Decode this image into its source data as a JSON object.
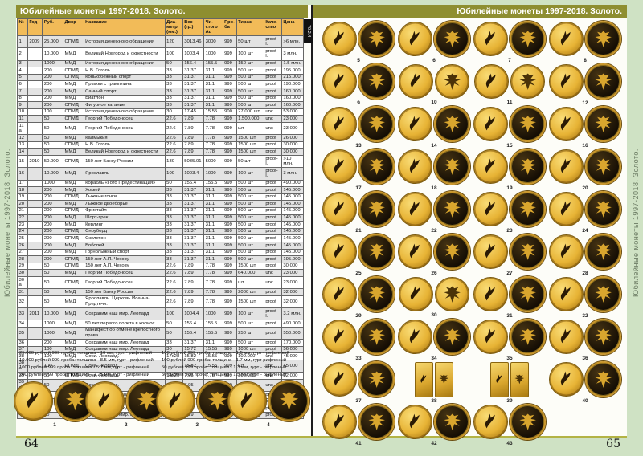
{
  "spread": {
    "side_title": "Юбилейные монеты 1997-2018. Золото.",
    "colors": {
      "title_bar": "#8e8e30",
      "table_header": "#f2bb58",
      "margin_green": "#cfe2c4",
      "coin_gold": "#d9a62e",
      "coin_dark": "#140d04"
    }
  },
  "left_page": {
    "title": "Юбилейные монеты 1997-2018. Золото.",
    "tab_label": "70.2.4",
    "page_number": "64",
    "table": {
      "headers": [
        "№",
        "Год",
        "Руб.",
        "Двор",
        "Название",
        "Диа-метр (мм.)",
        "Вес (гр.)",
        "Чи-стого Au",
        "Про-ба",
        "Тираж",
        "Каче-ство",
        "Цена"
      ],
      "rows": [
        [
          "1",
          "2009",
          "25.000",
          "СПМД",
          "История денежного обращения",
          "120",
          "3013.46",
          "3000",
          "999",
          "50 шт",
          "proof-l.",
          ">6 млн."
        ],
        [
          "2",
          "",
          "10.000",
          "ММД",
          "Великий Новгород и окрестности",
          "100",
          "1003.4",
          "1000",
          "999",
          "100 шт",
          "proof-l.",
          "3 млн."
        ],
        [
          "3",
          "",
          "1000",
          "ММД",
          "История денежного обращения",
          "50",
          "156.4",
          "155.5",
          "999",
          "150 шт",
          "proof",
          "1.5 млн."
        ],
        [
          "4",
          "",
          "200",
          "СПМД",
          "Н.В. Гоголь",
          "33",
          "31.37",
          "31.1",
          "999",
          "500 шт",
          "proof",
          "195.000"
        ],
        [
          "5",
          "",
          "200",
          "СПМД",
          "Конькобежный спорт",
          "33",
          "31.37",
          "31.1",
          "999",
          "500 шт",
          "proof",
          "215.000"
        ],
        [
          "6",
          "",
          "200",
          "ММД",
          "Прыжки с трамплина",
          "33",
          "31.37",
          "31.1",
          "999",
          "500 шт",
          "proof",
          "190.000"
        ],
        [
          "7",
          "",
          "200",
          "ММД",
          "Санный спорт",
          "33",
          "31.37",
          "31.1",
          "999",
          "500 шт",
          "proof",
          "160.000"
        ],
        [
          "8",
          "",
          "200",
          "ММД",
          "Биатлон",
          "33",
          "31.37",
          "31.1",
          "999",
          "500 шт",
          "proof",
          "160.000"
        ],
        [
          "9",
          "",
          "200",
          "СПМД",
          "Фигурное катание",
          "33",
          "31.37",
          "31.1",
          "999",
          "500 шт",
          "proof",
          "160.000"
        ],
        [
          "10",
          "",
          "100",
          "СПМД",
          "История денежного обращения",
          "30",
          "17.45",
          "15.55",
          "900",
          "27.000 шт",
          "unc",
          "53.000"
        ],
        [
          "11",
          "",
          "50",
          "СПМД",
          "Георгий Победоносец",
          "22.6",
          "7.89",
          "7.78",
          "999",
          "1.500.000",
          "unc",
          "23.000"
        ],
        [
          "11а",
          "",
          "50",
          "ММД",
          "Георгий Победоносец",
          "22.6",
          "7.89",
          "7.78",
          "999",
          "шт",
          "unc",
          "23.000"
        ],
        [
          "12",
          "",
          "50",
          "ММД",
          "Калмыкия",
          "22.6",
          "7.89",
          "7.78",
          "999",
          "1500 шт",
          "proof",
          "26.000"
        ],
        [
          "13",
          "",
          "50",
          "СПМД",
          "Н.В. Гоголь",
          "22.6",
          "7.89",
          "7.78",
          "999",
          "1500 шт",
          "proof",
          "30.000"
        ],
        [
          "14",
          "",
          "50",
          "ММД",
          "Великий Новгород и окрестности",
          "22.6",
          "7.89",
          "7.78",
          "999",
          "1500 шт",
          "proof",
          "30.000"
        ],
        [
          "15",
          "2010",
          "50.000",
          "СПМД",
          "150 лет Банку России",
          "130",
          "5035.01",
          "5000",
          "999",
          "50 шт",
          "proof-l.",
          ">10 млн."
        ],
        [
          "16",
          "",
          "10.000",
          "ММД",
          "Ярославль",
          "100",
          "1003.4",
          "1000",
          "999",
          "100 шт",
          "proof-l.",
          "3 млн."
        ],
        [
          "17",
          "",
          "1000",
          "ММД",
          "Корабль «Гото Предестинация»",
          "50",
          "156.4",
          "155.5",
          "999",
          "500 шт",
          "proof",
          "490.000"
        ],
        [
          "18",
          "",
          "200",
          "ММД",
          "Хоккей",
          "33",
          "31.37",
          "31.1",
          "999",
          "500 шт",
          "proof",
          "145.000"
        ],
        [
          "19",
          "",
          "200",
          "СПМД",
          "Лыжные гонки",
          "33",
          "31.37",
          "31.1",
          "999",
          "500 шт",
          "proof",
          "145.000"
        ],
        [
          "20",
          "",
          "200",
          "ММД",
          "Лыжное двоеборье",
          "33",
          "31.37",
          "31.1",
          "999",
          "500 шт",
          "proof",
          "145.000"
        ],
        [
          "21",
          "",
          "200",
          "СПМД",
          "Фристайл",
          "33",
          "31.37",
          "31.1",
          "999",
          "500 шт",
          "proof",
          "145.000"
        ],
        [
          "22",
          "",
          "200",
          "ММД",
          "Шорт-трек",
          "33",
          "31.37",
          "31.1",
          "999",
          "500 шт",
          "proof",
          "145.000"
        ],
        [
          "23",
          "",
          "200",
          "ММД",
          "Керлинг",
          "33",
          "31.37",
          "31.1",
          "999",
          "500 шт",
          "proof",
          "145.000"
        ],
        [
          "24",
          "",
          "200",
          "СПМД",
          "Сноуборд",
          "33",
          "31.37",
          "31.1",
          "999",
          "500 шт",
          "proof",
          "145.000"
        ],
        [
          "25",
          "",
          "200",
          "СПМД",
          "Скелетон",
          "33",
          "31.37",
          "31.1",
          "999",
          "500 шт",
          "proof",
          "145.000"
        ],
        [
          "26",
          "",
          "200",
          "ММД",
          "Бобслей",
          "33",
          "31.37",
          "31.1",
          "999",
          "500 шт",
          "proof",
          "145.000"
        ],
        [
          "27",
          "",
          "200",
          "ММД",
          "Горнолыжный спорт",
          "33",
          "31.37",
          "31.1",
          "999",
          "500 шт",
          "proof",
          "145.000"
        ],
        [
          "28",
          "",
          "200",
          "СПМД",
          "150 лет А.П. Чехову",
          "33",
          "31.37",
          "31.1",
          "999",
          "500 шт",
          "proof",
          "195.000"
        ],
        [
          "29",
          "",
          "50",
          "СПМД",
          "150 лет А.П. Чехову",
          "22.6",
          "7.89",
          "7.78",
          "999",
          "1500 шт",
          "proof",
          "30.000"
        ],
        [
          "30",
          "",
          "50",
          "ММД",
          "Георгий Победоносец",
          "22.6",
          "7.89",
          "7.78",
          "999",
          "640.000",
          "unc",
          "23.000"
        ],
        [
          "30а",
          "",
          "50",
          "СПМД",
          "Георгий Победоносец",
          "22.6",
          "7.89",
          "7.78",
          "999",
          "шт",
          "unc",
          "23.000"
        ],
        [
          "31",
          "",
          "50",
          "ММД",
          "150 лет Банку России",
          "22.6",
          "7.89",
          "7.78",
          "999",
          "2000 шт",
          "proof",
          "32.000"
        ],
        [
          "32",
          "",
          "50",
          "ММД",
          "Ярославль. Церковь Иоанна-Предтечи.",
          "22.6",
          "7.89",
          "7.78",
          "999",
          "1500 шт",
          "proof",
          "32.000"
        ],
        [
          "33",
          "2011",
          "10.000",
          "ММД",
          "Сохраним наш мир. Леопард",
          "100",
          "1004.4",
          "1000",
          "999",
          "100 шт",
          "proof-l.",
          "3.2 млн."
        ],
        [
          "34",
          "",
          "1000",
          "ММД",
          "50 лет первого полета в космос",
          "50",
          "156.4",
          "155.5",
          "999",
          "500 шт",
          "proof",
          "490.000"
        ],
        [
          "35",
          "",
          "1000",
          "ММД",
          "Манифест об отмене крепостного права",
          "50",
          "156.4",
          "155.5",
          "999",
          "250 шт",
          "proof",
          "550.000"
        ],
        [
          "36",
          "",
          "200",
          "ММД",
          "Сохраним наш мир. Леопард",
          "33",
          "31.37",
          "31.1",
          "999",
          "500 шт",
          "proof",
          "170.000"
        ],
        [
          "37",
          "",
          "100",
          "ММД",
          "Сохраним наш мир. Леопард",
          "30",
          "15.72",
          "15.55",
          "999",
          "1000 шт",
          "proof",
          "56.000"
        ],
        [
          "38",
          "",
          "100",
          "ММД",
          "Сочи. Леопард.",
          "17х28",
          "15.82",
          "15.55",
          "999",
          "100.000",
          "unc",
          "45.000"
        ],
        [
          "38а",
          "",
          "100",
          "СПМД",
          "Сочи. Леопард.",
          "",
          "15.82",
          "15.55",
          "999",
          "шт",
          "unc",
          "45.000"
        ],
        [
          "39",
          "",
          "50",
          "СПМД",
          "Сочи. Леопард.",
          "14х20",
          "7.95",
          "7.78",
          "999",
          "300.000",
          "unc",
          "22.000"
        ],
        [
          "39а",
          "",
          "50",
          "ММД",
          "Сочи. Леопард.",
          "",
          "7.95",
          "7.78",
          "999",
          "шт",
          "unc",
          "22.000"
        ],
        [
          "40",
          "",
          "50",
          "СПМД",
          "200-летие внутренних войск МВД",
          "22.6",
          "7.89",
          "7.78",
          "999",
          "750 шт",
          "proof",
          "95.000"
        ],
        [
          "41",
          "",
          "50",
          "ММД",
          "Бурятия",
          "22.6",
          "7.89",
          "7.78",
          "999",
          "1000 шт",
          "proof",
          "29.000"
        ],
        [
          "42",
          "",
          "50",
          "СПМД",
          "170 лет Сбербанку",
          "22.6",
          "7.89",
          "7.78",
          "999",
          "1250 шт",
          "proof",
          "32.000"
        ],
        [
          "43",
          "",
          "50",
          "ММД",
          "Сохраним наш мир. Леопард",
          "22.6",
          "7.89",
          "7.78",
          "999",
          "1500 шт",
          "proof",
          "32.000"
        ]
      ]
    },
    "footnotes_left": [
      "25.000 рублей 999 проба: толщина - 16 мм, гурт - рифленый",
      "10.000 рублей 999 проба: толщина - 8.5 мм, гурт - рифленый",
      "1000 рублей 999 проба: толщина - 5.7 мм, гурт - рифленый",
      "200 рублей 999 проба: толщина - 2.25 мм, гурт - рифленый"
    ],
    "footnotes_right": [
      "100 рублей 999 проба: толщина - 1.5 мм, гурт - рифленый",
      "100 рублей 900 проба: толщина - 1.7 мм, гурт рифленый",
      "50 рублей 999 проба: толщина - 1.3 мм, гурт - рифленый",
      "50 рублей 900 проба: толщина - 1.5 мм, гурт - рифленый"
    ],
    "bottom_coin_numbers": [
      "1",
      "2",
      "3",
      "4"
    ]
  },
  "right_page": {
    "title": "Юбилейные монеты 1997-2018. Золото.",
    "page_number": "65",
    "coin_numbers": [
      "5",
      "6",
      "7",
      "8",
      "9",
      "10",
      "11",
      "12",
      "13",
      "14",
      "15",
      "16",
      "17",
      "18",
      "19",
      "20",
      "21",
      "22",
      "23",
      "24",
      "25",
      "26",
      "27",
      "28",
      "29",
      "30",
      "31",
      "32",
      "33",
      "34",
      "35",
      "36",
      "37",
      "38",
      "39",
      "40",
      "41",
      "42",
      "43"
    ],
    "bar_shaped_items": [
      "38",
      "39"
    ],
    "all_gold_items": [
      "10",
      "11",
      "30"
    ]
  }
}
